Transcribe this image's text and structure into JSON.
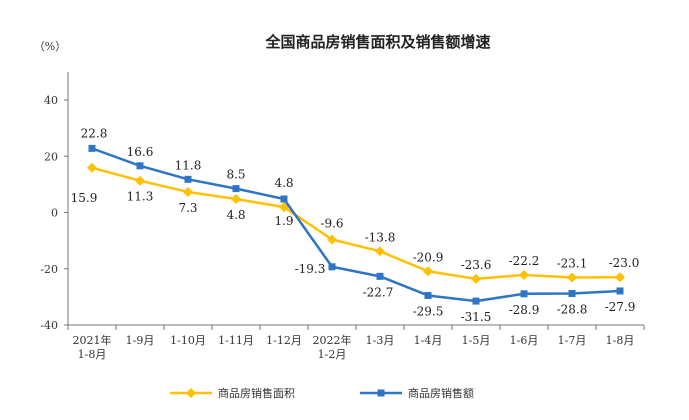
{
  "chart_data": {
    "type": "line",
    "title": "全国商品房销售面积及销售额增速",
    "ylabel": "（%）",
    "xlabel": "",
    "ylim": [
      -40,
      40
    ],
    "yticks": [
      40,
      20,
      0,
      -20,
      -40
    ],
    "categories": [
      [
        "2021年",
        "1-8月"
      ],
      [
        "1-9月"
      ],
      [
        "1-10月"
      ],
      [
        "1-11月"
      ],
      [
        "1-12月"
      ],
      [
        "2022年",
        "1-2月"
      ],
      [
        "1-3月"
      ],
      [
        "1-4月"
      ],
      [
        "1-5月"
      ],
      [
        "1-6月"
      ],
      [
        "1-7月"
      ],
      [
        "1-8月"
      ]
    ],
    "series": [
      {
        "name": "商品房销售面积",
        "color": "#FFC000",
        "marker": "diamond",
        "values": [
          15.9,
          11.3,
          7.3,
          4.8,
          1.9,
          -9.6,
          -13.8,
          -20.9,
          -23.6,
          -22.2,
          -23.1,
          -23.0
        ],
        "labels": [
          "15.9",
          "11.3",
          "7.3",
          "4.8",
          "1.9",
          "-9.6",
          "-13.8",
          "-20.9",
          "-23.6",
          "-22.2",
          "-23.1",
          "-23.0"
        ]
      },
      {
        "name": "商品房销售额",
        "color": "#2E75C6",
        "marker": "square",
        "values": [
          22.8,
          16.6,
          11.8,
          8.5,
          4.8,
          -19.3,
          -22.7,
          -29.5,
          -31.5,
          -28.9,
          -28.8,
          -27.9
        ],
        "labels": [
          "22.8",
          "16.6",
          "11.8",
          "8.5",
          "4.8",
          "-19.3",
          "-22.7",
          "-29.5",
          "-31.5",
          "-28.9",
          "-28.8",
          "-27.9"
        ]
      }
    ],
    "legend_position": "bottom"
  }
}
